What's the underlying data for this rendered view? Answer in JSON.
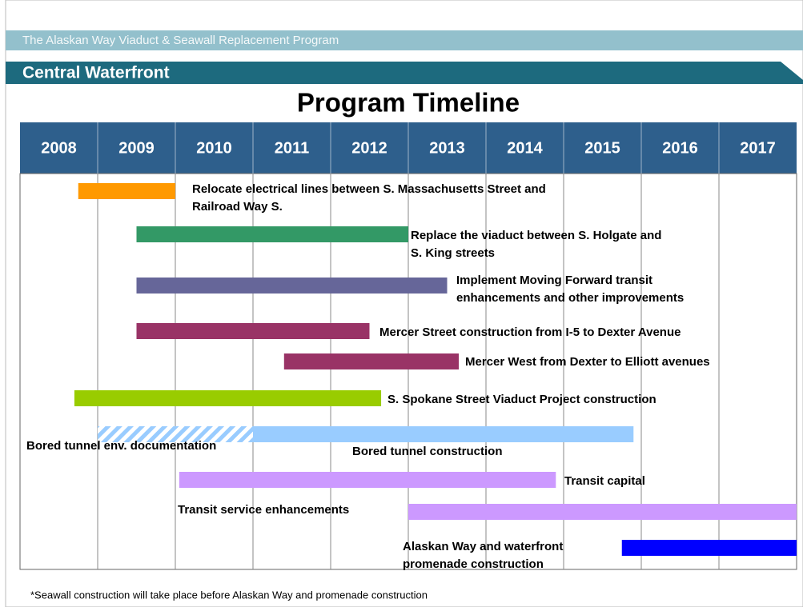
{
  "chart_data": {
    "type": "gantt",
    "program": "The Alaskan Way Viaduct & Seawall Replacement Program",
    "section": "Central Waterfront",
    "title": "Program Timeline",
    "xlim": [
      2008,
      2018
    ],
    "xticks": [
      2008,
      2009,
      2010,
      2011,
      2012,
      2013,
      2014,
      2015,
      2016,
      2017
    ],
    "grid": true,
    "tasks": [
      {
        "label": [
          "Relocate electrical lines between S. Massachusetts Street and",
          "Railroad Way S."
        ],
        "start": 2008.75,
        "end": 2010,
        "color": "#ff9900"
      },
      {
        "label": [
          "Replace the viaduct between S. Holgate and",
          "S. King streets"
        ],
        "start": 2009.5,
        "end": 2013,
        "color": "#339966"
      },
      {
        "label": [
          "Implement Moving Forward transit",
          "enhancements and other improvements"
        ],
        "start": 2009.5,
        "end": 2013.5,
        "color": "#666699"
      },
      {
        "label": [
          "Mercer Street construction from I-5 to Dexter Avenue"
        ],
        "start": 2009.5,
        "end": 2012.5,
        "color": "#993366"
      },
      {
        "label": [
          "Mercer West from Dexter to Elliott avenues"
        ],
        "start": 2011.4,
        "end": 2013.65,
        "color": "#993366"
      },
      {
        "label": [
          "S. Spokane Street Viaduct Project construction"
        ],
        "start": 2008.7,
        "end": 2012.65,
        "color": "#99cc00"
      },
      {
        "label": [
          "Bored tunnel env. documentation"
        ],
        "start": 2009,
        "end": 2011,
        "color": "#99ccff",
        "pattern": "hatch"
      },
      {
        "label": [
          "Bored tunnel construction"
        ],
        "start": 2011,
        "end": 2015.9,
        "color": "#99ccff"
      },
      {
        "label": [
          "Transit capital"
        ],
        "start": 2010.05,
        "end": 2014.9,
        "color": "#cc99ff"
      },
      {
        "label": [
          "Transit service enhancements"
        ],
        "start": 2013,
        "end": 2018,
        "color": "#cc99ff"
      },
      {
        "label": [
          "Alaskan Way and waterfront",
          "promenade construction"
        ],
        "start": 2015.75,
        "end": 2018,
        "color": "#0000ff"
      }
    ],
    "footnote": "*Seawall construction will take place before Alaskan Way and promenade construction"
  }
}
